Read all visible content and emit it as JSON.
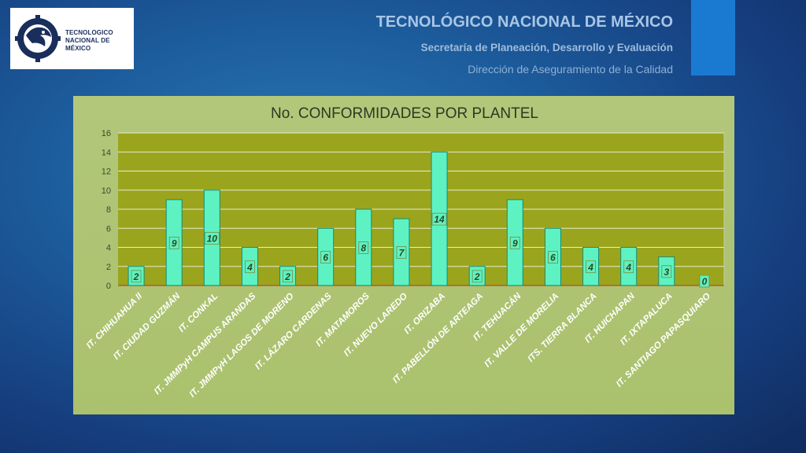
{
  "logo": {
    "text_line1": "TECNOLOGICO",
    "text_line2": "NACIONAL DE MÉXICO"
  },
  "header": {
    "title": "TECNOLÓGICO NACIONAL DE MÉXICO",
    "subtitle": "Secretaría de Planeación, Desarrollo y Evaluación",
    "department": "Dirección de Aseguramiento de la Calidad"
  },
  "colors": {
    "plot_area": "#9aa51d",
    "bar_fill": "#5ef2c2",
    "bar_stroke": "#1a8a72",
    "data_label": "#2a4a20",
    "accent": "#1a7ad2"
  },
  "chart_data": {
    "type": "bar",
    "title": "No. CONFORMIDADES POR PLANTEL",
    "xlabel": "",
    "ylabel": "",
    "ylim": [
      0,
      16
    ],
    "yticks": [
      0,
      2,
      4,
      6,
      8,
      10,
      12,
      14,
      16
    ],
    "grid": true,
    "legend": "none",
    "categories": [
      "IT. CHIHUAHUA II",
      "IT. CIUDAD GUZMÁN",
      "IT. CONKAL",
      "IT. JMMPyH CAMPUS ARANDAS",
      "IT. JMMPyH LAGOS DE MORENO",
      "IT. LÁZARO CARDENAS",
      "IT. MATAMOROS",
      "IT. NUEVO LAREDO",
      "IT. ORIZABA",
      "IT. PABELLÓN DE ARTEAGA",
      "IT. TEHUACÁN",
      "IT. VALLE DE MORELIA",
      "ITS. TIERRA BLANCA",
      "IT. HUICHAPAN",
      "IT. IXTAPALUCA",
      "IT. SANTIAGO PAPASQUIARO"
    ],
    "values": [
      2,
      9,
      10,
      4,
      2,
      6,
      8,
      7,
      14,
      2,
      9,
      6,
      4,
      4,
      3,
      0
    ]
  }
}
